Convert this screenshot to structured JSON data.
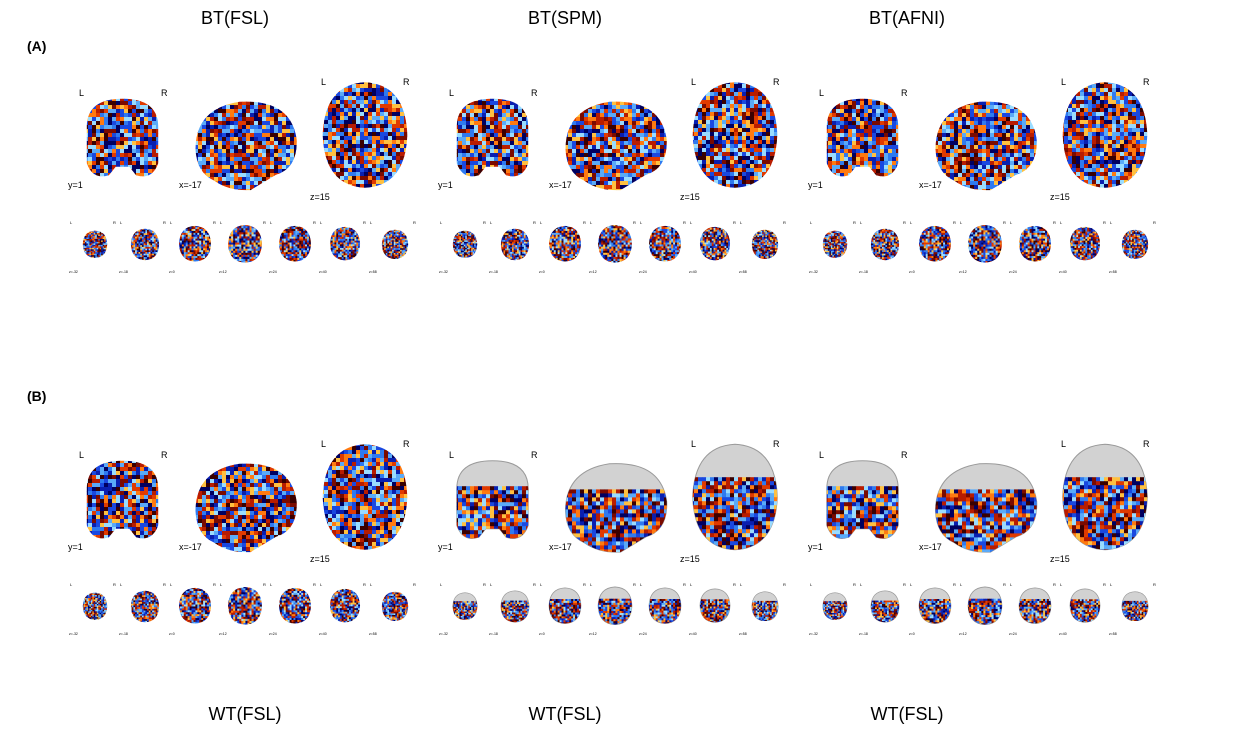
{
  "colors": {
    "hot": [
      "#3a0000",
      "#7a0a00",
      "#b81c00",
      "#e03a00",
      "#ff7a10",
      "#ffc040"
    ],
    "cold": [
      "#000060",
      "#0a1fb0",
      "#1a48e0",
      "#2f7af0",
      "#5aaaf8",
      "#9adcff"
    ],
    "skull": "#d2d2d2"
  },
  "top_titles": [
    "BT(FSL)",
    "BT(SPM)",
    "BT(AFNI)"
  ],
  "bottom_titles": [
    "WT(FSL)",
    "WT(FSL)",
    "WT(FSL)"
  ],
  "panels": [
    {
      "label": "(A)",
      "groups": [
        {
          "coords": {
            "y": "y=1",
            "x": "x=-17",
            "z": "z=15"
          },
          "lr": {
            "l": "L",
            "r": "R"
          },
          "template": false
        },
        {
          "coords": {
            "y": "y=1",
            "x": "x=-17",
            "z": "z=15"
          },
          "lr": {
            "l": "L",
            "r": "R"
          },
          "template": false
        },
        {
          "coords": {
            "y": "y=1",
            "x": "x=-17",
            "z": "z=15"
          },
          "lr": {
            "l": "L",
            "r": "R"
          },
          "template": false
        }
      ]
    },
    {
      "label": "(B)",
      "groups": [
        {
          "coords": {
            "y": "y=1",
            "x": "x=-17",
            "z": "z=15"
          },
          "lr": {
            "l": "L",
            "r": "R"
          },
          "template": false
        },
        {
          "coords": {
            "y": "y=1",
            "x": "x=-17",
            "z": "z=15"
          },
          "lr": {
            "l": "L",
            "r": "R"
          },
          "template": true
        },
        {
          "coords": {
            "y": "y=1",
            "x": "x=-17",
            "z": "z=15"
          },
          "lr": {
            "l": "L",
            "r": "R"
          },
          "template": true
        }
      ]
    }
  ],
  "axial_slices": [
    "z=-32",
    "z=-18",
    "z=0",
    "z=12",
    "z=24",
    "z=40",
    "z=58"
  ]
}
